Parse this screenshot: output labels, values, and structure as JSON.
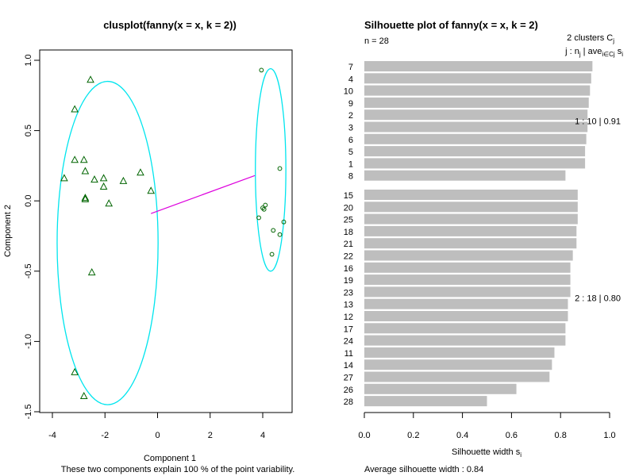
{
  "chart_data": [
    {
      "type": "scatter",
      "title": "clusplot(fanny(x = x, k = 2))",
      "xlabel": "Component 1",
      "ylabel": "Component 2",
      "subtitle": "These two components explain 100 % of the point variability.",
      "xlim": [
        -4.2,
        5.0
      ],
      "ylim": [
        -1.5,
        1.05
      ],
      "xticks": [
        -4,
        -2,
        0,
        2,
        4
      ],
      "yticks": [
        -1.5,
        -1.0,
        -0.5,
        0.0,
        0.5,
        1.0
      ],
      "xtick_labels": [
        "-4",
        "-2",
        "0",
        "2",
        "4"
      ],
      "ytick_labels": [
        "-1.5",
        "-1.0",
        "-0.5",
        "0.0",
        "0.5",
        "1.0"
      ],
      "grid": false,
      "colors": {
        "ellipse": "#00e5ee",
        "points": "#006400",
        "connector": "#dd00dd"
      },
      "series": [
        {
          "marker": "triangle",
          "points": [
            [
              -2.55,
              0.86
            ],
            [
              -3.15,
              0.65
            ],
            [
              -3.15,
              0.29
            ],
            [
              -2.8,
              0.29
            ],
            [
              -2.75,
              0.21
            ],
            [
              -2.4,
              0.15
            ],
            [
              -2.05,
              0.16
            ],
            [
              -0.65,
              0.2
            ],
            [
              -1.3,
              0.14
            ],
            [
              -2.05,
              0.1
            ],
            [
              -0.25,
              0.07
            ],
            [
              -3.55,
              0.16
            ],
            [
              -2.75,
              0.02
            ],
            [
              -2.75,
              0.01
            ],
            [
              -1.85,
              -0.02
            ],
            [
              -2.5,
              -0.51
            ],
            [
              -3.15,
              -1.22
            ],
            [
              -2.8,
              -1.39
            ]
          ]
        },
        {
          "marker": "circle",
          "points": [
            [
              3.95,
              0.93
            ],
            [
              4.65,
              0.23
            ],
            [
              4.1,
              -0.03
            ],
            [
              4.0,
              -0.05
            ],
            [
              4.05,
              -0.06
            ],
            [
              3.85,
              -0.12
            ],
            [
              4.8,
              -0.15
            ],
            [
              4.4,
              -0.21
            ],
            [
              4.65,
              -0.24
            ],
            [
              4.35,
              -0.38
            ]
          ]
        }
      ],
      "ellipses": [
        {
          "center": [
            -1.9,
            -0.3
          ],
          "rx": 1.92,
          "ry": 1.15
        },
        {
          "center": [
            4.3,
            0.22
          ],
          "rx": 0.58,
          "ry": 0.72
        }
      ],
      "connector": {
        "from": [
          -0.25,
          -0.09
        ],
        "to": [
          3.7,
          0.18
        ]
      }
    },
    {
      "type": "bar",
      "orientation": "horizontal",
      "title": "Silhouette plot of fanny(x = x, k = 2)",
      "n_label": "n = 28",
      "clusters_label": "2  clusters  C",
      "clusters_sub": "j",
      "legend_prefix": "j :  n",
      "legend_n_sub": "j",
      "legend_sep": " | ave",
      "legend_ave_sub": "i∈Cj",
      "legend_s": "  s",
      "legend_s_sub": "i",
      "xlabel": "Silhouette width s",
      "xlabel_sub": "i",
      "xlim": [
        0,
        1
      ],
      "xticks": [
        0,
        0.2,
        0.4,
        0.6,
        0.8,
        1.0
      ],
      "xtick_labels": [
        "0.0",
        "0.2",
        "0.4",
        "0.6",
        "0.8",
        "1.0"
      ],
      "footer": "Average silhouette width :  0.84",
      "bar_color": "#bebebe",
      "clusters": [
        {
          "summary": "1 :   10  |  0.91",
          "bars": [
            {
              "label": "7",
              "value": 0.93
            },
            {
              "label": "4",
              "value": 0.925
            },
            {
              "label": "10",
              "value": 0.92
            },
            {
              "label": "9",
              "value": 0.915
            },
            {
              "label": "2",
              "value": 0.91
            },
            {
              "label": "3",
              "value": 0.91
            },
            {
              "label": "6",
              "value": 0.905
            },
            {
              "label": "5",
              "value": 0.9
            },
            {
              "label": "1",
              "value": 0.9
            },
            {
              "label": "8",
              "value": 0.82
            }
          ]
        },
        {
          "summary": "2 :   18  |  0.80",
          "bars": [
            {
              "label": "15",
              "value": 0.87
            },
            {
              "label": "20",
              "value": 0.87
            },
            {
              "label": "25",
              "value": 0.87
            },
            {
              "label": "18",
              "value": 0.865
            },
            {
              "label": "21",
              "value": 0.865
            },
            {
              "label": "22",
              "value": 0.85
            },
            {
              "label": "16",
              "value": 0.84
            },
            {
              "label": "19",
              "value": 0.84
            },
            {
              "label": "23",
              "value": 0.84
            },
            {
              "label": "13",
              "value": 0.83
            },
            {
              "label": "12",
              "value": 0.83
            },
            {
              "label": "17",
              "value": 0.82
            },
            {
              "label": "24",
              "value": 0.82
            },
            {
              "label": "11",
              "value": 0.775
            },
            {
              "label": "14",
              "value": 0.765
            },
            {
              "label": "27",
              "value": 0.755
            },
            {
              "label": "26",
              "value": 0.62
            },
            {
              "label": "28",
              "value": 0.5
            }
          ]
        }
      ]
    }
  ]
}
